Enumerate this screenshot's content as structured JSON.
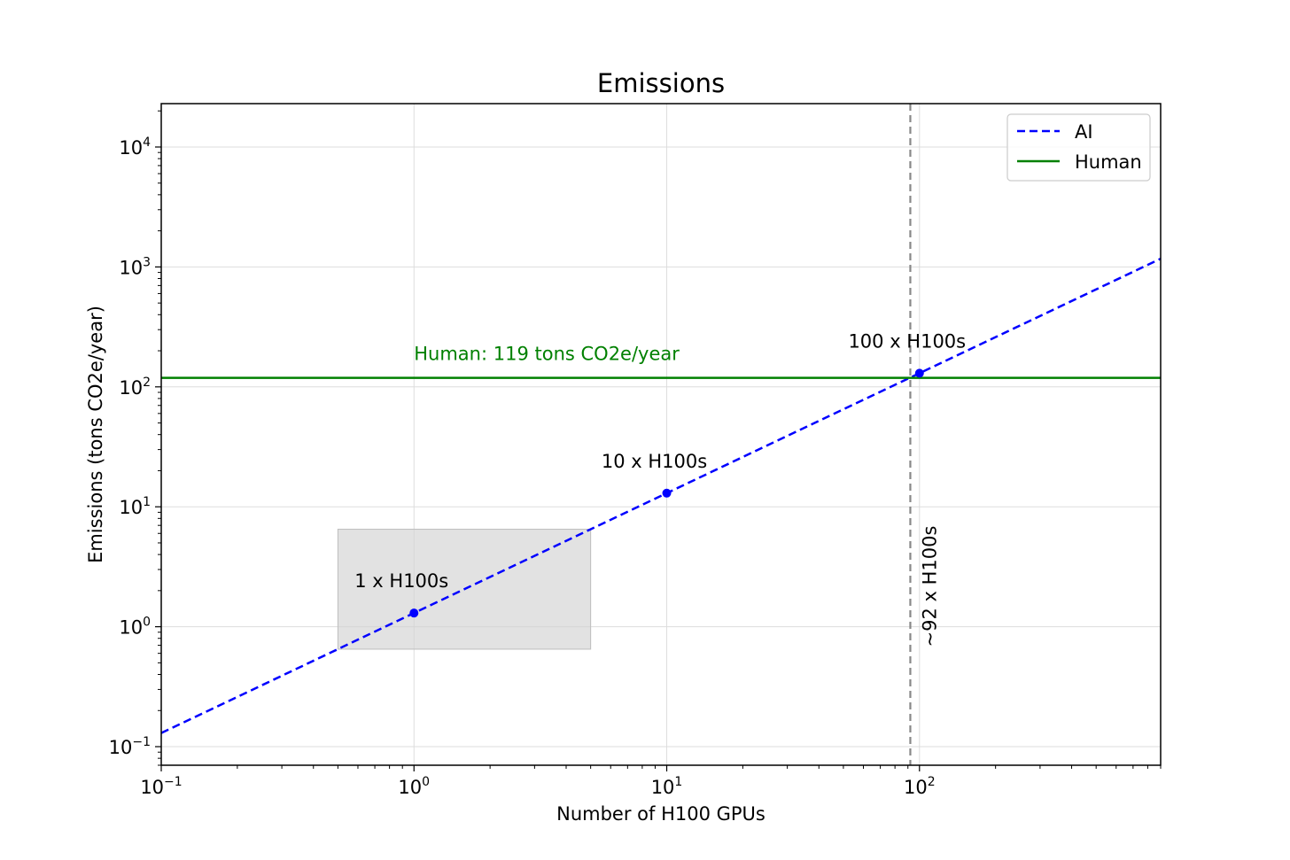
{
  "chart_data": {
    "type": "line",
    "title": "Emissions",
    "xlabel": "Number of H100 GPUs",
    "ylabel": "Emissions (tons CO2e/year)",
    "xscale": "log",
    "yscale": "log",
    "xlim": [
      0.1,
      900
    ],
    "ylim": [
      0.07,
      23000
    ],
    "x_ticks": [
      {
        "value": 0.1,
        "base": "10",
        "exp": "−1"
      },
      {
        "value": 1,
        "base": "10",
        "exp": "0"
      },
      {
        "value": 10,
        "base": "10",
        "exp": "1"
      },
      {
        "value": 100,
        "base": "10",
        "exp": "2"
      }
    ],
    "y_ticks": [
      {
        "value": 0.1,
        "base": "10",
        "exp": "−1"
      },
      {
        "value": 1,
        "base": "10",
        "exp": "0"
      },
      {
        "value": 10,
        "base": "10",
        "exp": "1"
      },
      {
        "value": 100,
        "base": "10",
        "exp": "2"
      },
      {
        "value": 1000,
        "base": "10",
        "exp": "3"
      },
      {
        "value": 10000,
        "base": "10",
        "exp": "4"
      }
    ],
    "grid": true,
    "legend_position": "top-right",
    "series": [
      {
        "name": "AI",
        "color": "#0000ff",
        "style": "dashed",
        "x": [
          0.1,
          900
        ],
        "y": [
          0.13,
          1170
        ]
      },
      {
        "name": "Human",
        "color": "#008000",
        "style": "solid",
        "x": [
          0.1,
          900
        ],
        "y": [
          119,
          119
        ]
      }
    ],
    "points": [
      {
        "x": 1,
        "y": 1.3,
        "label": "1 x H100s"
      },
      {
        "x": 10,
        "y": 13,
        "label": "10 x H100s"
      },
      {
        "x": 100,
        "y": 130,
        "label": "100 x H100s"
      }
    ],
    "human_label": "Human: 119 tons CO2e/year",
    "vline": {
      "x": 92,
      "label": "~92 x H100s",
      "color": "#888888"
    },
    "highlight_box": {
      "x0": 0.5,
      "x1": 5,
      "y0": 0.65,
      "y1": 6.5,
      "color": "#d3d3d3"
    }
  }
}
